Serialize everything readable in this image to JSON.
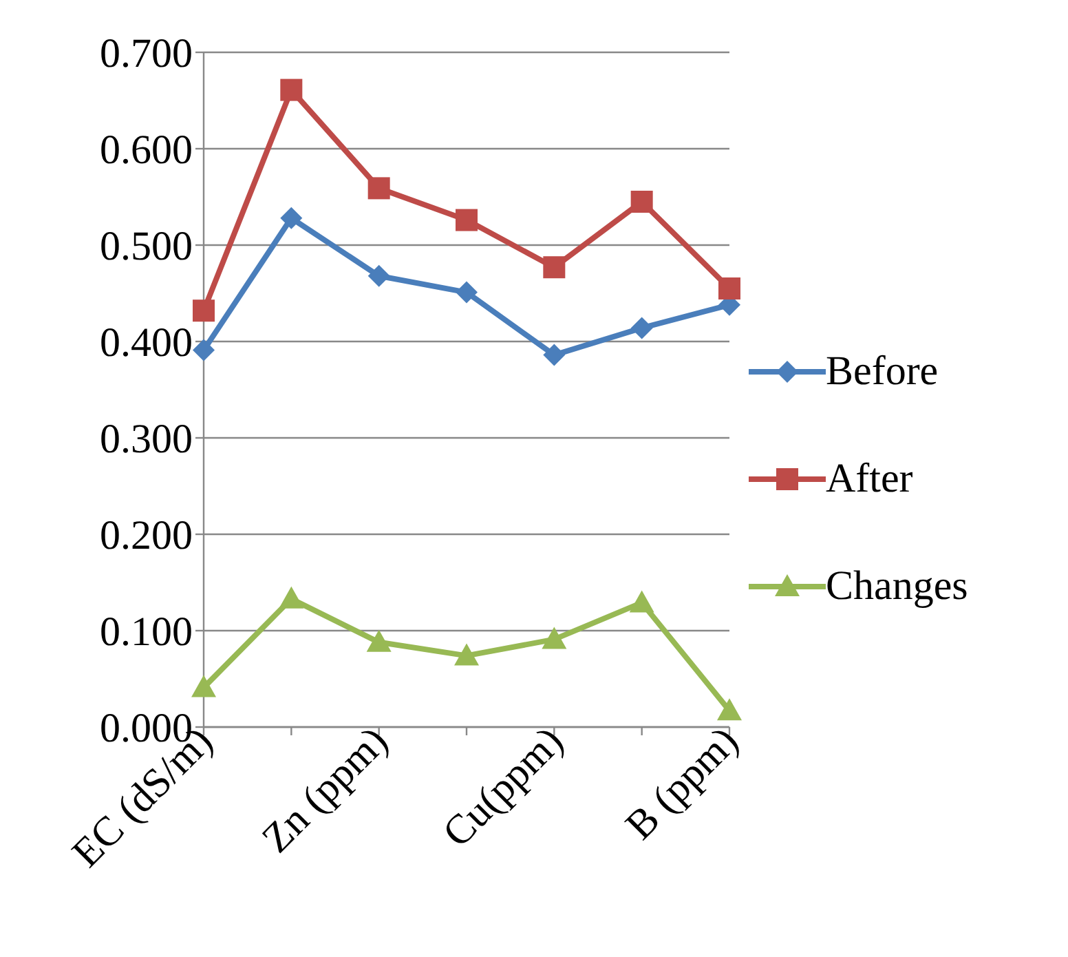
{
  "chart_data": {
    "type": "line",
    "categories": [
      "EC (dS/m)",
      null,
      "Zn (ppm)",
      null,
      "Cu(ppm)",
      null,
      "B (ppm)"
    ],
    "series": [
      {
        "name": "Before",
        "color": "#4a7ebb",
        "marker": "diamond",
        "values": [
          0.391,
          0.528,
          0.468,
          0.451,
          0.386,
          0.414,
          0.438
        ]
      },
      {
        "name": "After",
        "color": "#be4b48",
        "marker": "square",
        "values": [
          0.432,
          0.661,
          0.559,
          0.526,
          0.477,
          0.545,
          0.455
        ]
      },
      {
        "name": "Changes",
        "color": "#98b954",
        "marker": "triangle",
        "values": [
          0.041,
          0.133,
          0.088,
          0.074,
          0.091,
          0.129,
          0.017
        ]
      }
    ],
    "ylim": [
      0,
      0.7
    ],
    "yticks": [
      {
        "value": 0,
        "label": "0.000"
      },
      {
        "value": 0.1,
        "label": "0.100"
      },
      {
        "value": 0.2,
        "label": "0.200"
      },
      {
        "value": 0.3,
        "label": "0.300"
      },
      {
        "value": 0.4,
        "label": "0.400"
      },
      {
        "value": 0.5,
        "label": "0.500"
      },
      {
        "value": 0.6,
        "label": "0.600"
      },
      {
        "value": 0.7,
        "label": "0.700"
      }
    ],
    "grid": "y",
    "legend": "right"
  }
}
